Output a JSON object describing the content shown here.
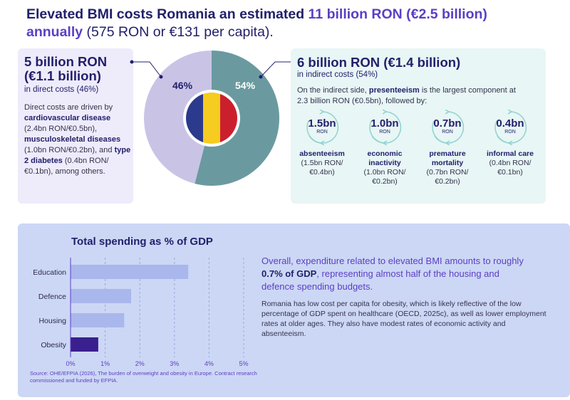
{
  "headline": {
    "part1": "Elevated BMI costs Romania an estimated ",
    "part2": "11 billion RON (€2.5 billion)",
    "part3": "annually",
    "part4": " (575 RON or €131 per capita)."
  },
  "direct": {
    "title_line1": "5 billion RON",
    "title_line2": "(€1.1 billion)",
    "subtitle": "in direct costs (46%)",
    "text1": "Direct costs are driven by ",
    "bold1": "cardiovascular disease",
    "text2": " (2.4bn RON/€0.5bn), ",
    "bold2": "musculoskeletal diseases",
    "text3": " (1.0bn RON/€0.2bn), and ",
    "bold3": "type 2 diabetes",
    "text4": " (0.4bn RON/€0.1bn), among others."
  },
  "donut": {
    "direct_label": "46%",
    "indirect_label": "54%",
    "direct_share": 46,
    "indirect_share": 54,
    "direct_color": "#c9c4e6",
    "indirect_color": "#6a9a9f",
    "flag_colors": [
      "#2b3a8c",
      "#f5cc1f",
      "#cc1f2e"
    ]
  },
  "indirect": {
    "title": "6 billion RON (€1.4 billion)",
    "subtitle": "in indirect costs (54%)",
    "intro1": "On the indirect side, ",
    "intro_bold": "presenteeism",
    "intro2": " is the largest component at 2.3 billion RON (€0.5bn), followed by:",
    "items": [
      {
        "value": "1.5bn",
        "unit": "RON",
        "name": "absenteeism",
        "amount": "(1.5bn RON/ €0.4bn)"
      },
      {
        "value": "1.0bn",
        "unit": "RON",
        "name": "economic inactivity",
        "amount": "(1.0bn RON/ €0.2bn)"
      },
      {
        "value": "0.7bn",
        "unit": "RON",
        "name": "premature mortality",
        "amount": "(0.7bn RON/ €0.2bn)"
      },
      {
        "value": "0.4bn",
        "unit": "RON",
        "name": "informal care",
        "amount": "(0.4bn RON/ €0.1bn)"
      }
    ]
  },
  "chart_data": {
    "type": "bar",
    "orientation": "horizontal",
    "title": "Total spending as % of GDP",
    "categories": [
      "Education",
      "Defence",
      "Housing",
      "Obesity"
    ],
    "values": [
      3.4,
      1.75,
      1.55,
      0.8
    ],
    "xlim": [
      0,
      5
    ],
    "xticks": [
      "0%",
      "1%",
      "2%",
      "3%",
      "4%",
      "5%"
    ],
    "bar_colors": [
      "#a9b7ec",
      "#a9b7ec",
      "#a9b7ec",
      "#3a1f8e"
    ],
    "grid": "vertical dashed"
  },
  "summary": {
    "text1": "Overall, expenditure related to elevated BMI amounts to roughly ",
    "bold": "0.7% of GDP",
    "text2": ", representing almost half of the housing and defence spending budgets."
  },
  "detail": "Romania has low cost per capita for obesity, which is likely reflective of the low percentage of GDP spent on healthcare (OECD, 2025c), as well as lower employment rates at older ages. They also have modest rates of economic activity and absenteeism.",
  "source": "Source: OHE/EFPIA (2026), The burden of overweight and obesity in Europe. Contract research commissioned and funded by EFPIA."
}
